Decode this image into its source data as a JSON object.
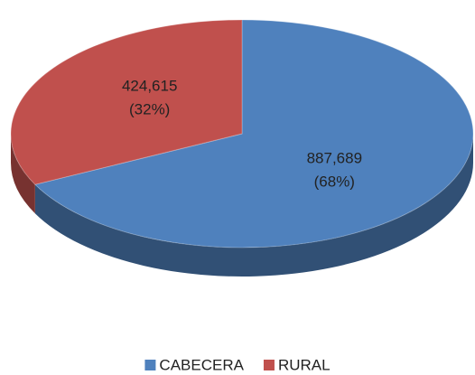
{
  "chart_data": {
    "type": "pie",
    "categories": [
      "CABECERA",
      "RURAL"
    ],
    "values": [
      887689,
      424615
    ],
    "value_labels": [
      "887,689",
      "424,615"
    ],
    "percent_labels": [
      "(68%)",
      "(32%)"
    ],
    "colors": [
      "#4f81bd",
      "#c0504d"
    ],
    "legend": "bottom"
  }
}
